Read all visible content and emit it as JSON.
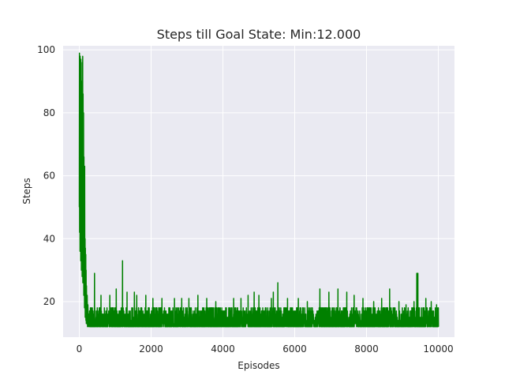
{
  "chart_data": {
    "type": "line",
    "title": "Steps till Goal State: Min:12.000",
    "xlabel": "Episodes",
    "ylabel": "Steps",
    "xlim": [
      -450,
      10450
    ],
    "ylim": [
      8.7,
      101.3
    ],
    "grid": true,
    "background": "#eaeaf2",
    "grid_color": "#ffffff",
    "xticks": [
      0,
      2000,
      4000,
      6000,
      8000,
      10000
    ],
    "xtick_labels": [
      "0",
      "2000",
      "4000",
      "6000",
      "8000",
      "10000"
    ],
    "yticks": [
      20,
      40,
      60,
      80,
      100
    ],
    "ytick_labels": [
      "20",
      "40",
      "60",
      "80",
      "100"
    ],
    "series": [
      {
        "color": "#008000",
        "early_x": [
          0,
          5,
          10,
          15,
          20,
          25,
          30,
          35,
          40,
          45,
          50,
          55,
          60,
          65,
          70,
          75,
          80,
          85,
          90,
          95,
          100,
          105,
          110,
          115,
          120,
          125,
          130,
          135,
          140,
          145,
          150,
          155,
          160,
          165,
          170,
          175,
          180,
          185,
          190,
          195,
          200,
          210,
          220,
          230,
          240,
          250
        ],
        "early_y": [
          50,
          99,
          42,
          95,
          36,
          98,
          60,
          88,
          33,
          97,
          52,
          78,
          30,
          90,
          45,
          70,
          28,
          96,
          40,
          98,
          26,
          86,
          55,
          38,
          80,
          22,
          66,
          30,
          50,
          18,
          63,
          24,
          40,
          15,
          37,
          20,
          35,
          14,
          30,
          13,
          25,
          13,
          22,
          12,
          19,
          13
        ],
        "floor": 12,
        "typical_max": 18,
        "spikes": [
          [
            420,
            29
          ],
          [
            600,
            22
          ],
          [
            850,
            22
          ],
          [
            1030,
            24
          ],
          [
            1200,
            33
          ],
          [
            1330,
            23
          ],
          [
            1530,
            23
          ],
          [
            1600,
            22
          ],
          [
            1850,
            22
          ],
          [
            2050,
            21
          ],
          [
            2300,
            21
          ],
          [
            2650,
            21
          ],
          [
            2850,
            21
          ],
          [
            3050,
            21
          ],
          [
            3300,
            22
          ],
          [
            3550,
            21
          ],
          [
            3800,
            20
          ],
          [
            4300,
            21
          ],
          [
            4500,
            21
          ],
          [
            4700,
            22
          ],
          [
            4870,
            23
          ],
          [
            5000,
            22
          ],
          [
            5350,
            21
          ],
          [
            5400,
            23
          ],
          [
            5530,
            26
          ],
          [
            5800,
            21
          ],
          [
            6100,
            21
          ],
          [
            6350,
            20
          ],
          [
            6700,
            24
          ],
          [
            6950,
            23
          ],
          [
            7200,
            24
          ],
          [
            7450,
            23
          ],
          [
            7650,
            22
          ],
          [
            7900,
            21
          ],
          [
            8200,
            20
          ],
          [
            8420,
            21
          ],
          [
            8640,
            24
          ],
          [
            8900,
            20
          ],
          [
            9100,
            19
          ],
          [
            9320,
            20
          ],
          [
            9400,
            29
          ],
          [
            9430,
            29
          ],
          [
            9650,
            21
          ],
          [
            9800,
            20
          ],
          [
            9950,
            19
          ]
        ]
      }
    ]
  }
}
